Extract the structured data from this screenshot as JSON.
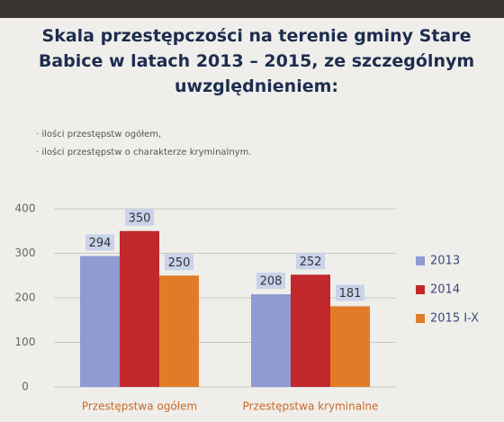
{
  "chart_data": {
    "type": "bar",
    "title": "Skala przestępczości na terenie gminy Stare Babice w latach 2013 – 2015, ze szczególnym uwzględnieniem:",
    "bullets": [
      "ilości przestępstw ogółem,",
      "ilości przestępstw o charakterze kryminalnym."
    ],
    "categories": [
      "Przestępstwa ogółem",
      "Przestępstwa kryminalne"
    ],
    "series": [
      {
        "name": "2013",
        "color": "#8f9bd2",
        "values": [
          294,
          208
        ]
      },
      {
        "name": "2014",
        "color": "#c1282c",
        "values": [
          350,
          252
        ]
      },
      {
        "name": "2015 I-X",
        "color": "#e27b28",
        "values": [
          250,
          181
        ]
      }
    ],
    "ylim": [
      0,
      400
    ],
    "yticks": [
      0,
      100,
      200,
      300,
      400
    ],
    "grid": true,
    "legend": "right"
  }
}
